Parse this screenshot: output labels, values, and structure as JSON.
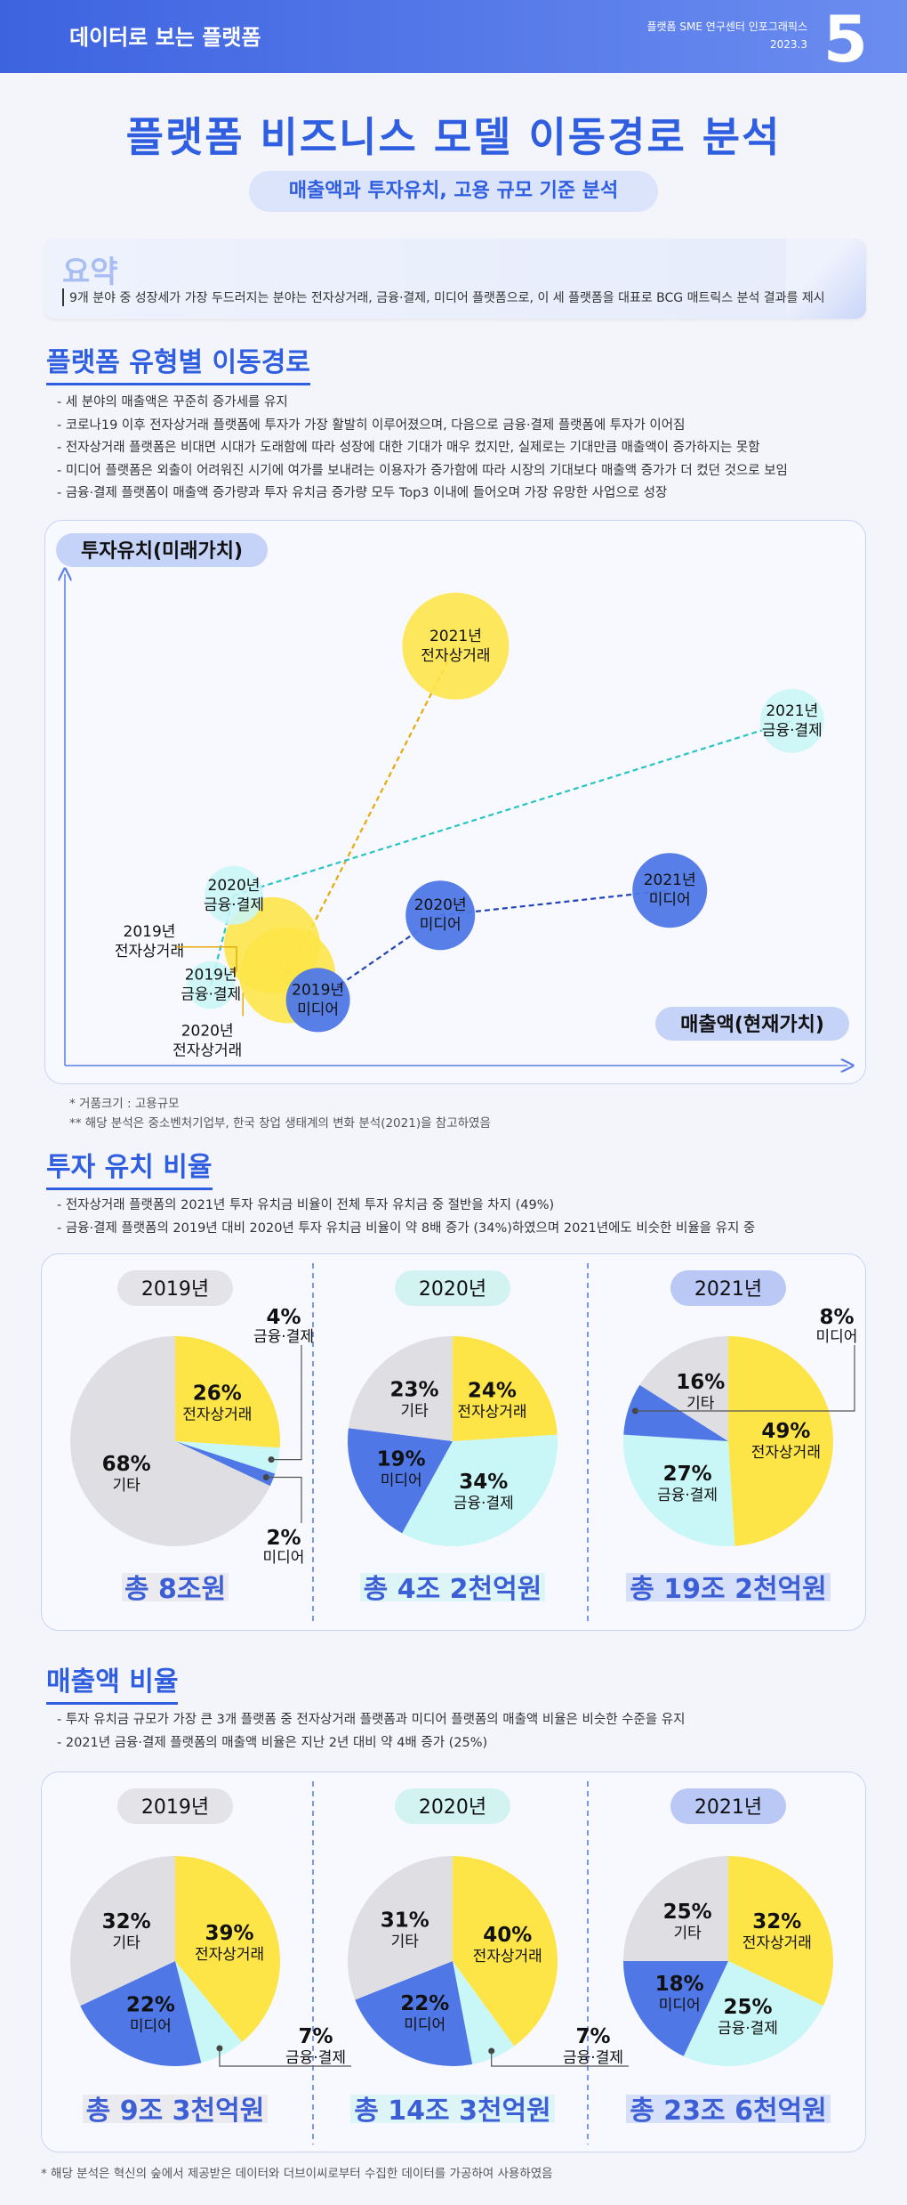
{
  "header": {
    "left": "데이터로 보는 플랫폼",
    "right_line1": "플랫폼 SME 연구센터 인포그래픽스",
    "right_line2": "2023.3",
    "issue_number": "5"
  },
  "title": "플랫폼 비즈니스 모델 이동경로 분석",
  "subtitle": "매출액과 투자유치, 고용 규모 기준 분석",
  "summary": {
    "label": "요약",
    "text": "9개 분야 중 성장세가 가장 두드러지는 분야는 전자상거래, 금융·결제, 미디어 플랫폼으로, 이 세 플랫폼을 대표로 BCG 매트릭스 분석 결과를 제시"
  },
  "section1": {
    "title": "플랫폼 유형별 이동경로",
    "bullets": [
      "- 세 분야의 매출액은 꾸준히 증가세를 유지",
      "- 코로나19 이후 전자상거래 플랫폼에 투자가 가장 활발히 이루어졌으며, 다음으로 금융·결제 플랫폼에 투자가 이어짐",
      "- 전자상거래 플랫폼은 비대면 시대가 도래함에 따라 성장에 대한 기대가 매우 컸지만, 실제로는 기대만큼 매출액이 증가하지는 못함",
      "- 미디어 플랫폼은 외출이 어려워진 시기에 여가를 보내려는 이용자가 증가함에 따라 시장의 기대보다 매출액 증가가 더 컸던 것으로 보임",
      "- 금융·결제 플랫폼이 매출액 증가량과 투자 유치금 증가량 모두 Top3 이내에 들어오며 가장 유망한 사업으로 성장"
    ],
    "notes": [
      "* 거품크기 : 고용규모",
      "** 해당 분석은 중소벤처기업부, 한국 창업 생태계의 변화 분석(2021)을 참고하였음"
    ]
  },
  "section2": {
    "title": "투자 유치 비율",
    "bullets": [
      "- 전자상거래 플랫폼의 2021년 투자 유치금 비율이 전체 투자 유치금 중 절반을 차지 (49%)",
      "- 금융·결제 플랫폼의 2019년 대비 2020년 투자 유치금 비율이 약 8배 증가 (34%)하였으며 2021년에도 비슷한 비율을 유지 중"
    ]
  },
  "section3": {
    "title": "매출액 비율",
    "bullets": [
      "- 투자 유치금 규모가 가장 큰 3개 플랫폼 중 전자상거래 플랫폼과 미디어 플랫폼의  매출액 비율은 비슷한 수준을 유지",
      "- 2021년 금융·결제 플랫폼의 매출액 비율은 지난 2년 대비 약 4배 증가 (25%)"
    ]
  },
  "footnote": "* 해당 분석은 혁신의 숲에서 제공받은 데이터와 더브이씨로부터 수집한 데이터를 가공하여 사용하였음",
  "colors": {
    "ecommerce": "#fde547",
    "finance": "#c9f6f6",
    "media": "#4f78e6",
    "other": "#dfdfe3",
    "accent": "#2f5ee0"
  },
  "chart_data": [
    {
      "type": "scatter",
      "subtype": "bubble",
      "ylabel": "투자유치(미래가치)",
      "xlabel": "매출액(현재가치)",
      "grid": false,
      "series": [
        {
          "name": "전자상거래",
          "color": "#fde547",
          "points": [
            {
              "label": "2019년\n전자상거래",
              "x": 0.25,
              "y": 0.22,
              "size": 0.09
            },
            {
              "label": "2020년\n전자상거래",
              "x": 0.27,
              "y": 0.16,
              "size": 0.09
            },
            {
              "label": "2021년\n전자상거래",
              "x": 0.49,
              "y": 0.82,
              "size": 0.1
            }
          ]
        },
        {
          "name": "금융·결제",
          "color": "#c9f6f6",
          "points": [
            {
              "label": "2019년\n금융·결제",
              "x": 0.17,
              "y": 0.14,
              "size": 0.045
            },
            {
              "label": "2020년\n금융·결제",
              "x": 0.2,
              "y": 0.32,
              "size": 0.055
            },
            {
              "label": "2021년\n금융·결제",
              "x": 0.93,
              "y": 0.67,
              "size": 0.06
            }
          ]
        },
        {
          "name": "미디어",
          "color": "#4f78e6",
          "points": [
            {
              "label": "2019년\n미디어",
              "x": 0.31,
              "y": 0.11,
              "size": 0.06
            },
            {
              "label": "2020년\n미디어",
              "x": 0.47,
              "y": 0.28,
              "size": 0.065
            },
            {
              "label": "2021년\n미디어",
              "x": 0.77,
              "y": 0.33,
              "size": 0.07
            }
          ]
        }
      ]
    },
    {
      "type": "pie",
      "title": "투자 유치 비율",
      "pies": [
        {
          "year": "2019년",
          "total": "총 8조원",
          "slices": [
            {
              "name": "전자상거래",
              "value": 26
            },
            {
              "name": "금융·결제",
              "value": 4
            },
            {
              "name": "미디어",
              "value": 2
            },
            {
              "name": "기타",
              "value": 68
            }
          ]
        },
        {
          "year": "2020년",
          "total": "총 4조 2천억원",
          "slices": [
            {
              "name": "전자상거래",
              "value": 24
            },
            {
              "name": "금융·결제",
              "value": 34
            },
            {
              "name": "미디어",
              "value": 19
            },
            {
              "name": "기타",
              "value": 23
            }
          ]
        },
        {
          "year": "2021년",
          "total": "총 19조 2천억원",
          "slices": [
            {
              "name": "전자상거래",
              "value": 49
            },
            {
              "name": "금융·결제",
              "value": 27
            },
            {
              "name": "미디어",
              "value": 8
            },
            {
              "name": "기타",
              "value": 16
            }
          ]
        }
      ]
    },
    {
      "type": "pie",
      "title": "매출액 비율",
      "pies": [
        {
          "year": "2019년",
          "total": "총 9조 3천억원",
          "slices": [
            {
              "name": "전자상거래",
              "value": 39
            },
            {
              "name": "금융·결제",
              "value": 7
            },
            {
              "name": "미디어",
              "value": 22
            },
            {
              "name": "기타",
              "value": 32
            }
          ]
        },
        {
          "year": "2020년",
          "total": "총 14조 3천억원",
          "slices": [
            {
              "name": "전자상거래",
              "value": 40
            },
            {
              "name": "금융·결제",
              "value": 7
            },
            {
              "name": "미디어",
              "value": 22
            },
            {
              "name": "기타",
              "value": 31
            }
          ]
        },
        {
          "year": "2021년",
          "total": "총 23조 6천억원",
          "slices": [
            {
              "name": "전자상거래",
              "value": 32
            },
            {
              "name": "금융·결제",
              "value": 25
            },
            {
              "name": "미디어",
              "value": 18
            },
            {
              "name": "기타",
              "value": 25
            }
          ]
        }
      ]
    }
  ]
}
